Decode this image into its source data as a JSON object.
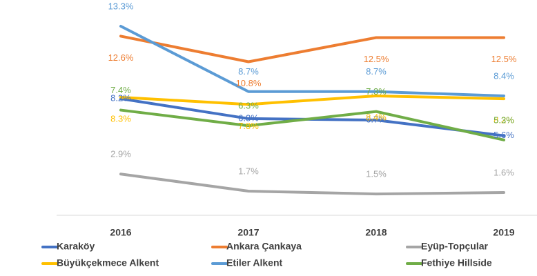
{
  "chart_data": {
    "type": "line",
    "categories": [
      "2016",
      "2017",
      "2018",
      "2019"
    ],
    "ylim": [
      0,
      15
    ],
    "series": [
      {
        "name": "Karaköy",
        "color": "#4472c4",
        "values": [
          8.2,
          6.8,
          6.7,
          5.6
        ],
        "value_labels": [
          "8.2%",
          "6.8%",
          "6.7%",
          "5.6%"
        ]
      },
      {
        "name": "Ankara Çankaya",
        "color": "#ed7d31",
        "values": [
          12.6,
          10.8,
          12.5,
          12.5
        ],
        "value_labels": [
          "12.6%",
          "10.8%",
          "12.5%",
          "12.5%"
        ]
      },
      {
        "name": "Eyüp-Topçular",
        "color": "#a5a5a5",
        "values": [
          2.9,
          1.7,
          1.5,
          1.6
        ],
        "value_labels": [
          "2.9%",
          "1.7%",
          "1.5%",
          "1.6%"
        ]
      },
      {
        "name": "Büyükçekmece Alkent",
        "color": "#ffc000",
        "values": [
          8.3,
          7.8,
          8.4,
          8.2
        ],
        "value_labels": [
          "8.3%",
          "7.8%",
          "8.4%",
          "8.2%"
        ]
      },
      {
        "name": "Etiler Alkent",
        "color": "#5b9bd5",
        "values": [
          13.3,
          8.7,
          8.7,
          8.4
        ],
        "value_labels": [
          "13.3%",
          "8.7%",
          "8.7%",
          "8.4%"
        ]
      },
      {
        "name": "Fethiye Hillside",
        "color": "#70ad47",
        "values": [
          7.4,
          6.3,
          7.3,
          5.3
        ],
        "value_labels": [
          "7.4%",
          "6.3%",
          "7.3%",
          "5.3%"
        ]
      }
    ]
  }
}
